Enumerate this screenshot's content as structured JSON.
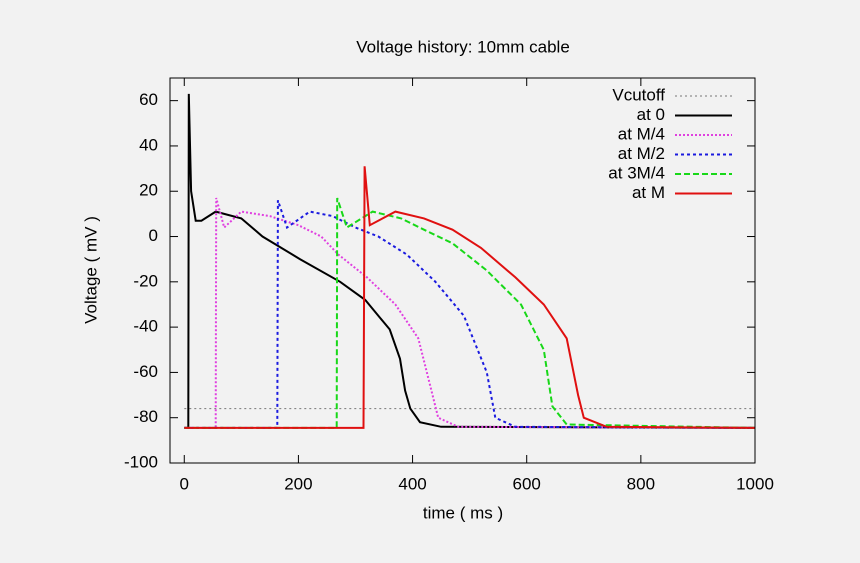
{
  "chart_data": {
    "type": "line",
    "title": "Voltage history: 10mm cable",
    "x_label": "time  ( ms )",
    "y_label": "Voltage  ( mV )",
    "xlim": [
      -25,
      1000
    ],
    "ylim": [
      -100,
      70
    ],
    "xticks": [
      0,
      200,
      400,
      600,
      800,
      1000
    ],
    "yticks": [
      -100,
      -80,
      -60,
      -40,
      -20,
      0,
      20,
      40,
      60
    ],
    "legend": "top-right",
    "series": [
      {
        "name": "Vcutoff",
        "color": "#777777",
        "dash": "2,3",
        "width": 1,
        "x": [
          0,
          1000
        ],
        "values": [
          -76,
          -76
        ]
      },
      {
        "name": "at 0",
        "color": "#000000",
        "dash": "none",
        "width": 2,
        "x": [
          0,
          7,
          8,
          12,
          20,
          30,
          55,
          100,
          137,
          203,
          273,
          317,
          360,
          378,
          387,
          396,
          413,
          450,
          1000
        ],
        "values": [
          -84.5,
          -84.5,
          63,
          20,
          7,
          7,
          11,
          8,
          0,
          -10,
          -20,
          -28,
          -41,
          -54,
          -68,
          -76,
          -82,
          -84,
          -84.5
        ]
      },
      {
        "name": "at M/4",
        "color": "#e040e0",
        "dash": "2,2",
        "width": 2,
        "x": [
          0,
          55,
          56,
          70,
          100,
          150,
          200,
          240,
          270,
          320,
          370,
          410,
          430,
          445,
          480,
          1000
        ],
        "values": [
          -84.5,
          -84.5,
          17,
          4,
          11,
          9,
          5,
          0,
          -8,
          -18,
          -30,
          -45,
          -65,
          -80,
          -84,
          -84.5
        ]
      },
      {
        "name": "at M/2",
        "color": "#1a1adf",
        "dash": "3,3",
        "width": 2,
        "x": [
          0,
          163,
          164,
          180,
          220,
          260,
          300,
          340,
          390,
          440,
          490,
          530,
          545,
          580,
          1000
        ],
        "values": [
          -84.5,
          -84.5,
          16,
          4,
          11,
          9,
          4,
          0,
          -8,
          -20,
          -35,
          -60,
          -80,
          -84,
          -84.5
        ]
      },
      {
        "name": "at 3M/4",
        "color": "#18d818",
        "dash": "6,3",
        "width": 2,
        "x": [
          0,
          267,
          268,
          285,
          330,
          380,
          420,
          470,
          530,
          590,
          630,
          645,
          670,
          1000
        ],
        "values": [
          -84.5,
          -84.5,
          17,
          4,
          11,
          8,
          3,
          -3,
          -15,
          -30,
          -50,
          -75,
          -83,
          -84.5
        ]
      },
      {
        "name": "at M",
        "color": "#e01010",
        "dash": "none",
        "width": 2,
        "x": [
          0,
          314,
          316,
          325,
          370,
          420,
          470,
          520,
          580,
          630,
          670,
          690,
          700,
          740,
          1000
        ],
        "values": [
          -84.5,
          -84.5,
          31,
          5,
          11,
          8,
          3,
          -5,
          -18,
          -30,
          -45,
          -70,
          -80,
          -84,
          -84.5
        ]
      }
    ]
  }
}
